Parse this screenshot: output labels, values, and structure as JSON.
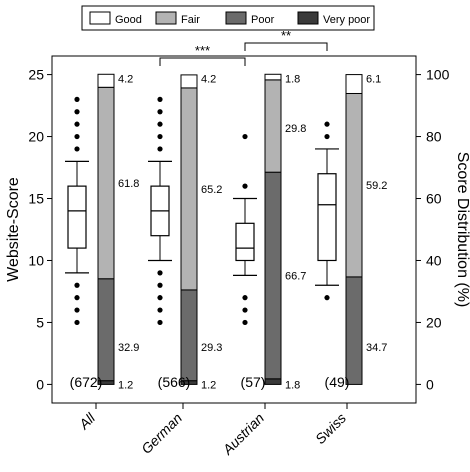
{
  "chart_data": {
    "type": "box_and_stacked_bar",
    "title": "",
    "left_axis": {
      "label": "Website-Score",
      "ylim": [
        -1.5,
        26.5
      ],
      "ticks": [
        0,
        5,
        10,
        15,
        20,
        25
      ]
    },
    "right_axis": {
      "label": "Score Distribution (%)",
      "ticks": [
        0,
        20,
        40,
        60,
        80,
        100
      ]
    },
    "legend": {
      "placement": "top",
      "items": [
        {
          "name": "Good",
          "color": "#ffffff"
        },
        {
          "name": "Fair",
          "color": "#b3b3b3"
        },
        {
          "name": "Poor",
          "color": "#6b6b6b"
        },
        {
          "name": "Very poor",
          "color": "#3a3a3a"
        }
      ]
    },
    "categories": [
      "All",
      "German",
      "Austrian",
      "Swiss"
    ],
    "sample_sizes": [
      "(672)",
      "(566)",
      "(57)",
      "(49)"
    ],
    "boxplots": [
      {
        "category": "All",
        "whisker_low": 9,
        "q1": 11,
        "median": 14,
        "q3": 16,
        "whisker_high": 18,
        "outliers": [
          5,
          6,
          7,
          8,
          19,
          20,
          21,
          22,
          23
        ]
      },
      {
        "category": "German",
        "whisker_low": 10,
        "q1": 12,
        "median": 14,
        "q3": 16,
        "whisker_high": 18,
        "outliers": [
          5,
          6,
          7,
          8,
          9,
          19,
          20,
          21,
          22,
          23
        ]
      },
      {
        "category": "Austrian",
        "whisker_low": 8.8,
        "q1": 10,
        "median": 11,
        "q3": 13,
        "whisker_high": 15,
        "outliers": [
          5,
          6,
          7,
          16,
          20
        ]
      },
      {
        "category": "Swiss",
        "whisker_low": 8,
        "q1": 10,
        "median": 14.5,
        "q3": 17,
        "whisker_high": 19,
        "outliers": [
          7,
          20,
          21
        ]
      }
    ],
    "distribution": [
      {
        "category": "All",
        "very_poor": 1.2,
        "poor": 32.9,
        "fair": 61.8,
        "good": 4.2,
        "labels": {
          "very_poor": "1.2",
          "poor": "32.9",
          "fair": "61.8",
          "good": "4.2"
        }
      },
      {
        "category": "German",
        "very_poor": 1.2,
        "poor": 29.3,
        "fair": 65.2,
        "good": 4.2,
        "labels": {
          "very_poor": "1.2",
          "poor": "29.3",
          "fair": "65.2",
          "good": "4.2"
        }
      },
      {
        "category": "Austrian",
        "very_poor": 1.8,
        "poor": 66.7,
        "fair": 29.8,
        "good": 1.8,
        "labels": {
          "very_poor": "1.8",
          "poor": "66.7",
          "fair": "29.8",
          "good": "1.8"
        }
      },
      {
        "category": "Swiss",
        "very_poor": 0,
        "poor": 34.7,
        "fair": 59.2,
        "good": 6.1,
        "labels": {
          "very_poor": "",
          "poor": "34.7",
          "fair": "59.2",
          "good": "6.1"
        }
      }
    ],
    "significance": [
      {
        "from": "German",
        "to": "Austrian",
        "label": "***"
      },
      {
        "from": "Austrian",
        "to": "Swiss",
        "label": "**"
      }
    ]
  }
}
